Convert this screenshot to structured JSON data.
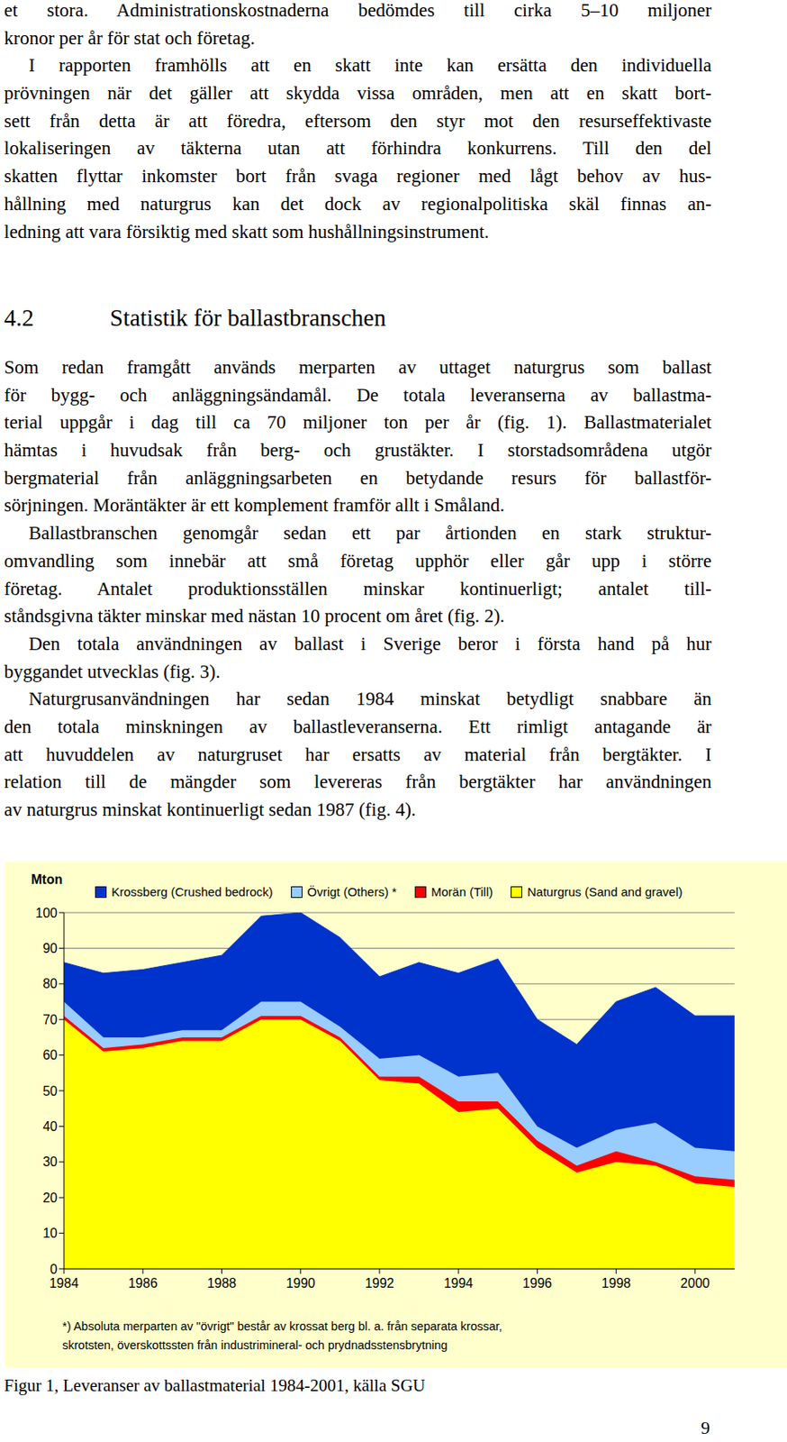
{
  "top_text": {
    "paragraphs": [
      [
        "et stora. Administrationskostnaderna bedömdes till cirka 5–10 miljoner",
        "kronor per år för stat och företag."
      ],
      [
        "I rapporten framhölls att en skatt inte kan ersätta den individuella",
        "prövningen när det gäller att skydda vissa områden, men att en skatt bort-",
        "sett från detta är att föredra, eftersom den styr mot den resurseffektivaste",
        "lokaliseringen av täkterna utan att förhindra konkurrens. Till den del",
        "skatten flyttar inkomster bort från svaga regioner med lågt behov av hus-",
        "hållning med naturgrus kan det dock av regionalpolitiska skäl finnas an-",
        "ledning att vara försiktig med skatt som hushållningsinstrument."
      ]
    ]
  },
  "heading": {
    "number": "4.2",
    "title": "Statistik för ballastbranschen"
  },
  "section_text": {
    "paragraphs": [
      [
        "Som redan framgått används merparten av uttaget naturgrus som ballast",
        "för bygg- och anläggningsändamål. De totala leveranserna av ballastma-",
        "terial uppgår i dag till ca 70 miljoner ton per år (fig. 1). Ballastmaterialet",
        "hämtas i huvudsak från berg- och grustäkter. I storstadsområdena utgör",
        "bergmaterial från anläggningsarbeten en betydande resurs för ballastför-",
        "sörjningen. Moräntäkter är ett komplement framför allt i Småland."
      ],
      [
        "Ballastbranschen genomgår sedan ett par årtionden en stark struktur-",
        "omvandling som innebär att små företag upphör eller går upp i större",
        "företag. Antalet produktionsställen minskar kontinuerligt; antalet till-",
        "ståndsgivna täkter minskar med nästan 10 procent om året (fig. 2)."
      ],
      [
        "Den totala användningen av ballast i Sverige beror i första hand på hur",
        "byggandet utvecklas (fig. 3)."
      ],
      [
        "Naturgrusanvändningen har sedan 1984 minskat betydligt snabbare än",
        "den totala minskningen av ballastleveranserna. Ett rimligt antagande är",
        "att huvuddelen av naturgruset har ersatts av material från bergtäkter. I",
        "relation till de mängder som levereras från bergtäkter har användningen",
        "av naturgrus minskat kontinuerligt sedan 1987 (fig. 4)."
      ]
    ]
  },
  "chart_data": {
    "type": "area",
    "stacked": true,
    "y_label": "Mton",
    "x": [
      1984,
      1985,
      1986,
      1987,
      1988,
      1989,
      1990,
      1991,
      1992,
      1993,
      1994,
      1995,
      1996,
      1997,
      1998,
      1999,
      2000,
      2001
    ],
    "series": [
      {
        "name": "Krossberg (Crushed bedrock)",
        "color": "#0033cc",
        "values": [
          11,
          18,
          19,
          19,
          21,
          24,
          25,
          25,
          23,
          26,
          29,
          32,
          30,
          29,
          36,
          38,
          37,
          38
        ]
      },
      {
        "name": "Övrigt (Others) *",
        "color": "#99ccff",
        "values": [
          4,
          3,
          2,
          2,
          2,
          4,
          4,
          3,
          5,
          6,
          7,
          8,
          4,
          5,
          6,
          11,
          8,
          8
        ]
      },
      {
        "name": "Morän (Till)",
        "color": "#ff0000",
        "values": [
          1,
          1,
          1,
          1,
          1,
          1,
          1,
          1,
          1,
          2,
          3,
          2,
          2,
          2,
          3,
          1,
          2,
          2
        ]
      },
      {
        "name": "Naturgrus (Sand and gravel)",
        "color": "#ffff00",
        "values": [
          70,
          61,
          62,
          64,
          64,
          70,
          70,
          64,
          53,
          52,
          44,
          45,
          34,
          27,
          30,
          29,
          24,
          23
        ]
      }
    ],
    "xlim": [
      1984,
      2001
    ],
    "xticks": [
      1984,
      1986,
      1988,
      1990,
      1992,
      1994,
      1996,
      1998,
      2000
    ],
    "ylim": [
      0,
      100
    ],
    "yticks": [
      0,
      10,
      20,
      30,
      40,
      50,
      60,
      70,
      80,
      90,
      100
    ],
    "grid": true,
    "legend": "top",
    "footnote": [
      "*) Absoluta merparten av \"övrigt\" består av krossat berg bl. a. från separata krossar,",
      "skrotsten, överskottssten från industrimineral- och prydnadsstensbrytning"
    ]
  },
  "caption": "Figur 1, Leveranser av ballastmaterial 1984-2001, källa SGU",
  "page_number": 9
}
